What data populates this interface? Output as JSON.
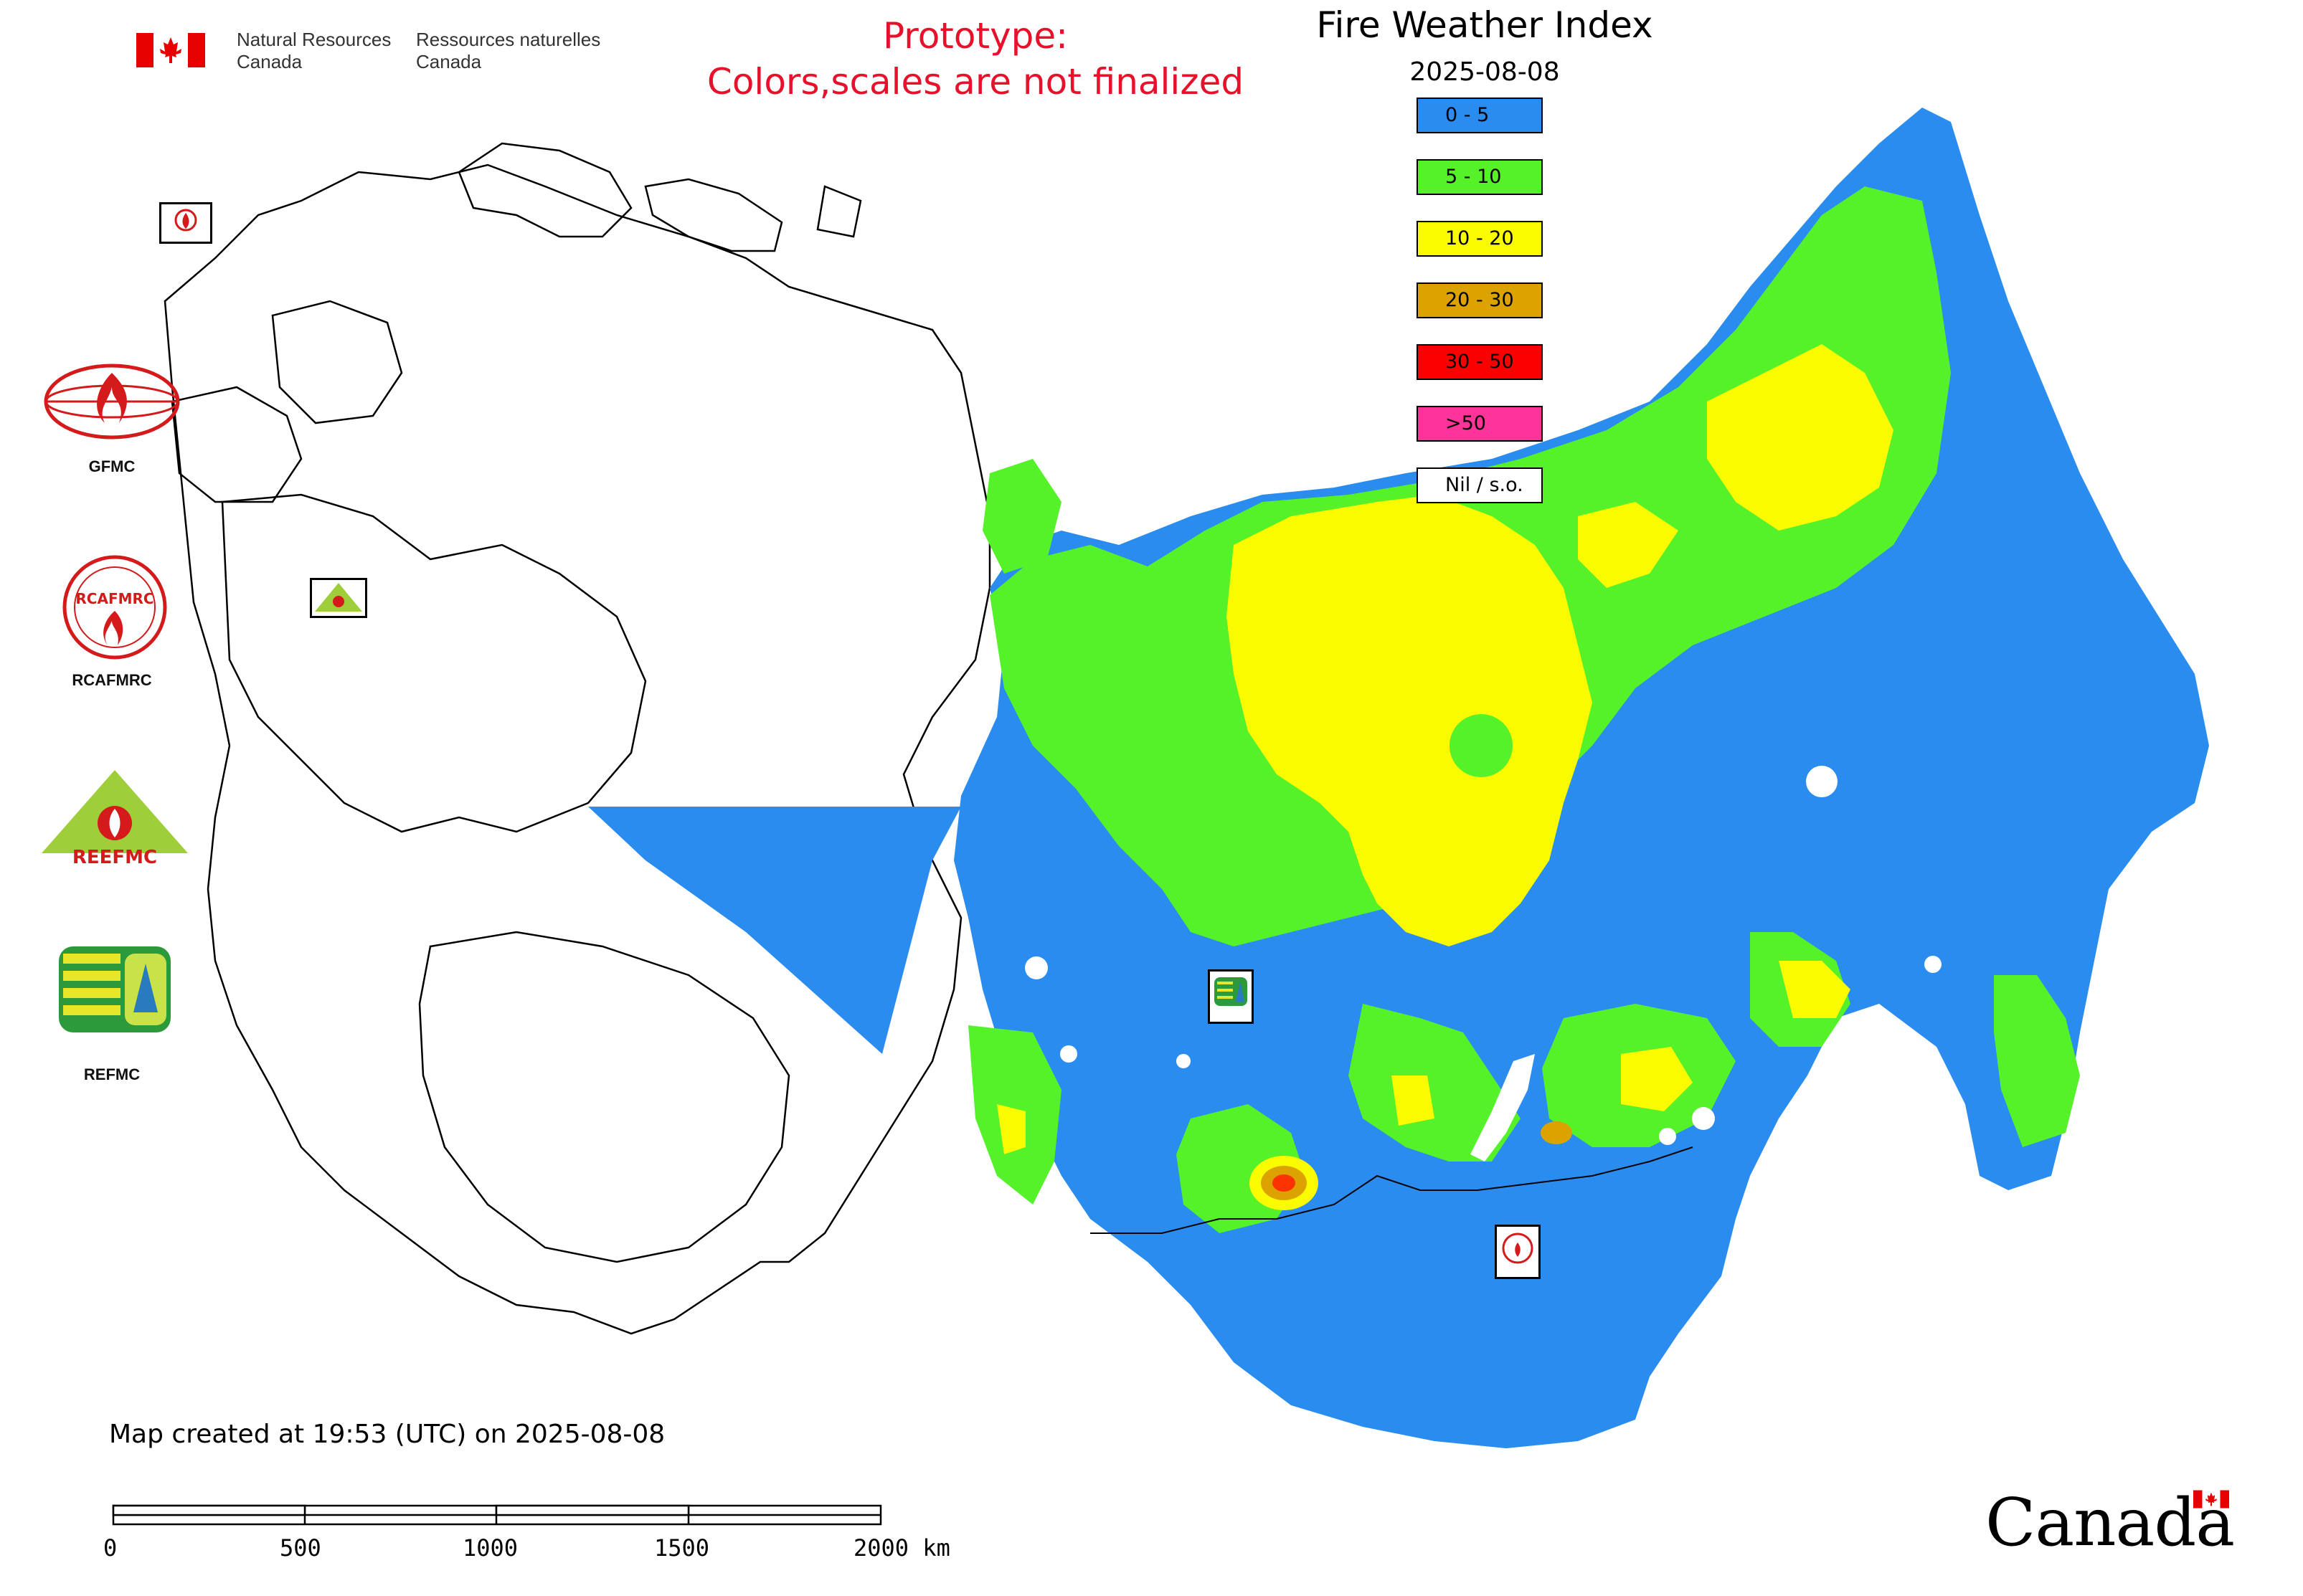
{
  "header": {
    "department_en": [
      "Natural Resources",
      "Canada"
    ],
    "department_fr": [
      "Ressources naturelles",
      "Canada"
    ],
    "prototype_notice": [
      "Prototype:",
      "Colors,scales are not finalized"
    ]
  },
  "map": {
    "title": "Fire Weather Index",
    "date": "2025-08-08",
    "legend": [
      {
        "label": "0 - 5",
        "color": "#2b8cf0"
      },
      {
        "label": "5 - 10",
        "color": "#55f22a"
      },
      {
        "label": "10 - 20",
        "color": "#fbfb00"
      },
      {
        "label": "20 - 30",
        "color": "#dca300"
      },
      {
        "label": "30 - 50",
        "color": "#fc0000"
      },
      {
        "label": ">50",
        "color": "#fc3399"
      },
      {
        "label": "Nil / s.o.",
        "color": "#ffffff"
      }
    ]
  },
  "organizations": [
    {
      "name": "GFMC",
      "icon": "gfmc-logo"
    },
    {
      "name": "RCAFMRC",
      "icon": "rcafmrc-logo"
    },
    {
      "name": "",
      "icon": "reefmc-logo",
      "logo_text": "REEFMC"
    },
    {
      "name": "REFMC",
      "icon": "refmc-logo"
    }
  ],
  "map_markers": {
    "gfmc": "GFMC",
    "reefmc": "REEFMC",
    "refmc": "REFMC",
    "rcafmrc": "RCAFMRC"
  },
  "footer": {
    "created": "Map created at 19:53 (UTC) on 2025-08-08",
    "scale_labels": [
      "0",
      "500",
      "1000",
      "1500",
      "2000 km"
    ]
  },
  "wordmark": "Canada"
}
